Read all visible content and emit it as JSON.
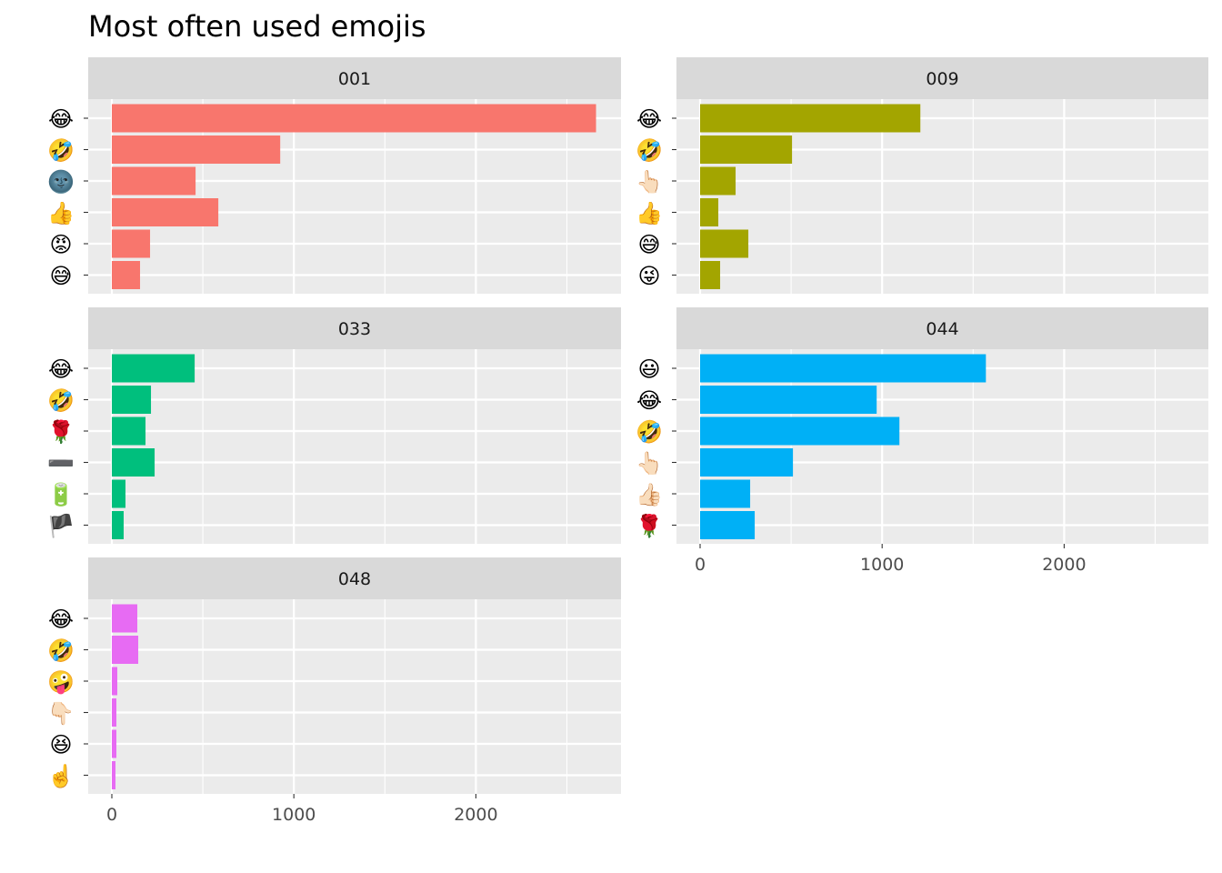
{
  "chart_data": {
    "type": "bar",
    "orientation": "horizontal",
    "title": "Most often used emojis",
    "xlabel": "",
    "ylabel": "",
    "xlim": [
      0,
      2700
    ],
    "x_ticks": [
      0,
      1000,
      2000
    ],
    "x_tick_labels": [
      "0",
      "1000",
      "2000"
    ],
    "grid": true,
    "legend": "none",
    "facets": [
      {
        "name": "001",
        "color": "#F8766D",
        "categories": [
          "😂",
          "🤣",
          "🌚",
          "👍",
          "😡",
          "😅"
        ],
        "values": [
          2660,
          925,
          460,
          585,
          210,
          155
        ]
      },
      {
        "name": "009",
        "color": "#A3A500",
        "categories": [
          "😂",
          "🤣",
          "👆🏻",
          "👍",
          "😅",
          "😜"
        ],
        "values": [
          1210,
          505,
          195,
          100,
          265,
          110
        ]
      },
      {
        "name": "033",
        "color": "#00BF7D",
        "categories": [
          "😂",
          "🤣",
          "🌹",
          "➖",
          "🔋",
          "🏴"
        ],
        "values": [
          455,
          215,
          185,
          235,
          75,
          65
        ]
      },
      {
        "name": "044",
        "color": "#00B0F6",
        "categories": [
          "😃",
          "😂",
          "🤣",
          "👆🏻",
          "👍🏻",
          "🌹"
        ],
        "values": [
          1570,
          970,
          1095,
          510,
          275,
          300
        ]
      },
      {
        "name": "048",
        "color": "#E76BF3",
        "categories": [
          "😂",
          "🤣",
          "🤪",
          "👇🏻",
          "😆",
          "☝️"
        ],
        "values": [
          140,
          145,
          30,
          25,
          25,
          20
        ]
      }
    ]
  }
}
